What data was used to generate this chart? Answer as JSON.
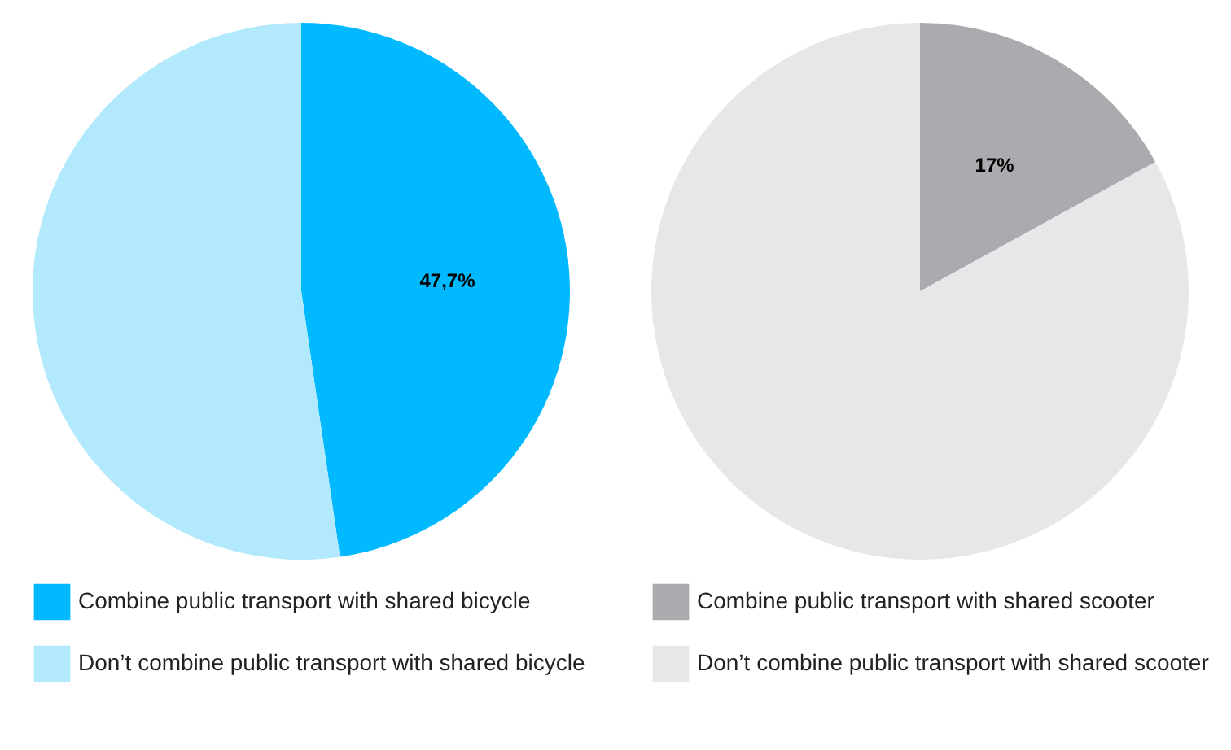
{
  "chart_data": [
    {
      "type": "pie",
      "categories": [
        "Combine public transport with shared bicycle",
        "Don’t combine public transport with shared bicycle"
      ],
      "values": [
        47.7,
        52.3
      ],
      "colors": [
        "#00b9ff",
        "#b3e9fc"
      ],
      "value_labels": [
        "47,7%",
        null
      ],
      "legend": "bottom"
    },
    {
      "type": "pie",
      "categories": [
        "Combine public transport with shared scooter",
        "Don’t combine public transport with shared scooter"
      ],
      "values": [
        17,
        83
      ],
      "colors": [
        "#a9abae",
        "#e6e7e9"
      ],
      "value_labels": [
        "17%",
        null
      ],
      "legend": "bottom"
    }
  ]
}
